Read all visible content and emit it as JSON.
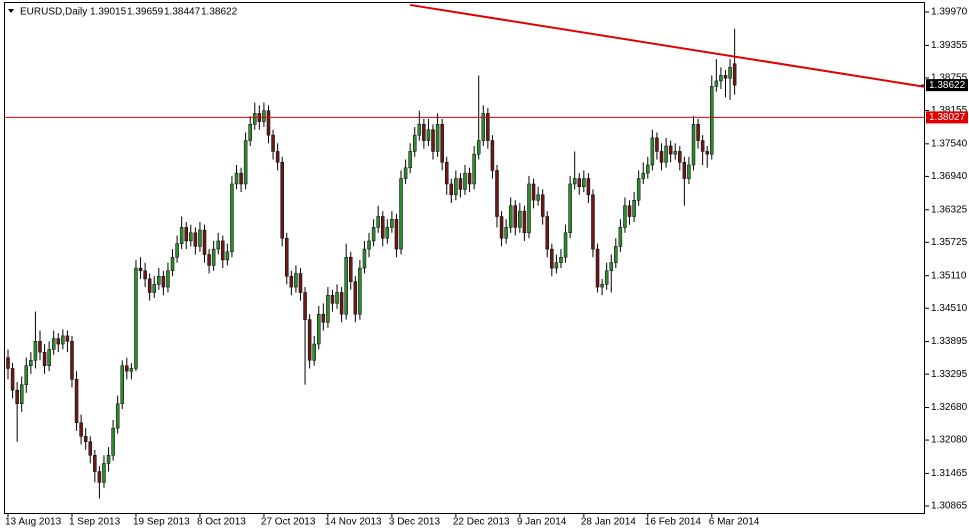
{
  "chart_data": {
    "type": "candlestick",
    "symbol": "EURUSD,Daily",
    "up_color": "#2e8b2e",
    "down_color": "#6b1a1a",
    "line_color": "#e00000",
    "ylim": [
      1.30736,
      1.40154
    ],
    "yticks": [
      {
        "value": 1.3997,
        "label": "1.39970"
      },
      1.39355,
      1.38755,
      1.38155,
      {
        "value": 1.3754,
        "label": "1.37540"
      },
      {
        "value": 1.3694,
        "label": "1.36940"
      },
      1.36325,
      1.35725,
      {
        "value": 1.3511,
        "label": "1.35110"
      },
      {
        "value": 1.3451,
        "label": "1.34510"
      },
      1.33895,
      1.33295,
      {
        "value": 1.3268,
        "label": "1.32680"
      },
      {
        "value": 1.3208,
        "label": "1.32080"
      },
      1.31465,
      1.30865
    ],
    "xticks": [
      "13 Aug 2013",
      "1 Sep 2013",
      "19 Sep 2013",
      "8 Oct 2013",
      "27 Oct 2013",
      "14 Nov 2013",
      "3 Dec 2013",
      "22 Dec 2013",
      "9 Jan 2014",
      "28 Jan 2014",
      "16 Feb 2014",
      "6 Mar 2014"
    ],
    "level": 1.38027,
    "trendline": {
      "start": 1.401,
      "end": 1.3859
    },
    "candles": [
      [
        1.336,
        1.3375,
        1.332,
        1.334
      ],
      [
        1.334,
        1.335,
        1.3285,
        1.33
      ],
      [
        1.33,
        1.3315,
        1.3205,
        1.3275
      ],
      [
        1.3275,
        1.3325,
        1.326,
        1.331
      ],
      [
        1.331,
        1.336,
        1.3295,
        1.3345
      ],
      [
        1.3345,
        1.337,
        1.333,
        1.3355
      ],
      [
        1.3355,
        1.3445,
        1.334,
        1.339
      ],
      [
        1.339,
        1.341,
        1.3355,
        1.337
      ],
      [
        1.337,
        1.3385,
        1.333,
        1.3345
      ],
      [
        1.3345,
        1.339,
        1.3335,
        1.3375
      ],
      [
        1.3375,
        1.341,
        1.3365,
        1.3395
      ],
      [
        1.3395,
        1.3405,
        1.337,
        1.3385
      ],
      [
        1.3385,
        1.3412,
        1.3375,
        1.34
      ],
      [
        1.34,
        1.341,
        1.337,
        1.339
      ],
      [
        1.339,
        1.34,
        1.3305,
        1.332
      ],
      [
        1.332,
        1.3335,
        1.3225,
        1.324
      ],
      [
        1.324,
        1.3255,
        1.32,
        1.3215
      ],
      [
        1.3215,
        1.323,
        1.319,
        1.3205
      ],
      [
        1.3205,
        1.3215,
        1.3165,
        1.318
      ],
      [
        1.318,
        1.319,
        1.313,
        1.315
      ],
      [
        1.315,
        1.316,
        1.31,
        1.313
      ],
      [
        1.313,
        1.318,
        1.312,
        1.3165
      ],
      [
        1.3165,
        1.3195,
        1.315,
        1.318
      ],
      [
        1.318,
        1.3245,
        1.317,
        1.323
      ],
      [
        1.323,
        1.329,
        1.322,
        1.3275
      ],
      [
        1.3275,
        1.3355,
        1.3265,
        1.3345
      ],
      [
        1.3345,
        1.336,
        1.332,
        1.3335
      ],
      [
        1.3335,
        1.335,
        1.332,
        1.334
      ],
      [
        1.334,
        1.354,
        1.3335,
        1.3525
      ],
      [
        1.3525,
        1.3545,
        1.3505,
        1.352
      ],
      [
        1.352,
        1.3535,
        1.349,
        1.3505
      ],
      [
        1.3505,
        1.3515,
        1.3465,
        1.348
      ],
      [
        1.348,
        1.351,
        1.347,
        1.3495
      ],
      [
        1.3495,
        1.3525,
        1.3485,
        1.351
      ],
      [
        1.351,
        1.352,
        1.3475,
        1.349
      ],
      [
        1.349,
        1.3535,
        1.348,
        1.352
      ],
      [
        1.352,
        1.356,
        1.351,
        1.3545
      ],
      [
        1.3545,
        1.3585,
        1.3535,
        1.357
      ],
      [
        1.357,
        1.362,
        1.356,
        1.36
      ],
      [
        1.36,
        1.361,
        1.356,
        1.3575
      ],
      [
        1.3575,
        1.3605,
        1.3565,
        1.359
      ],
      [
        1.359,
        1.36,
        1.355,
        1.3565
      ],
      [
        1.3565,
        1.361,
        1.3555,
        1.3595
      ],
      [
        1.3595,
        1.3605,
        1.3535,
        1.355
      ],
      [
        1.355,
        1.356,
        1.3515,
        1.353
      ],
      [
        1.353,
        1.3575,
        1.352,
        1.356
      ],
      [
        1.356,
        1.359,
        1.355,
        1.3575
      ],
      [
        1.3575,
        1.3585,
        1.3525,
        1.354
      ],
      [
        1.354,
        1.357,
        1.353,
        1.3555
      ],
      [
        1.3555,
        1.3695,
        1.3545,
        1.368
      ],
      [
        1.368,
        1.3715,
        1.367,
        1.37
      ],
      [
        1.37,
        1.371,
        1.3665,
        1.368
      ],
      [
        1.368,
        1.3775,
        1.367,
        1.376
      ],
      [
        1.376,
        1.3805,
        1.375,
        1.379
      ],
      [
        1.379,
        1.383,
        1.378,
        1.381
      ],
      [
        1.381,
        1.3825,
        1.378,
        1.3795
      ],
      [
        1.3795,
        1.383,
        1.3785,
        1.3815
      ],
      [
        1.3815,
        1.3825,
        1.3755,
        1.377
      ],
      [
        1.377,
        1.378,
        1.3725,
        1.374
      ],
      [
        1.374,
        1.3755,
        1.3705,
        1.372
      ],
      [
        1.372,
        1.373,
        1.3565,
        1.358
      ],
      [
        1.358,
        1.359,
        1.3495,
        1.351
      ],
      [
        1.351,
        1.352,
        1.3475,
        1.349
      ],
      [
        1.349,
        1.353,
        1.348,
        1.3515
      ],
      [
        1.3515,
        1.3525,
        1.3465,
        1.348
      ],
      [
        1.348,
        1.349,
        1.331,
        1.343
      ],
      [
        1.343,
        1.344,
        1.334,
        1.3355
      ],
      [
        1.3355,
        1.34,
        1.3345,
        1.3385
      ],
      [
        1.3385,
        1.3455,
        1.3375,
        1.344
      ],
      [
        1.344,
        1.346,
        1.341,
        1.3425
      ],
      [
        1.3425,
        1.349,
        1.3415,
        1.3475
      ],
      [
        1.3475,
        1.3485,
        1.3445,
        1.346
      ],
      [
        1.346,
        1.3495,
        1.345,
        1.348
      ],
      [
        1.348,
        1.349,
        1.3425,
        1.344
      ],
      [
        1.344,
        1.357,
        1.343,
        1.3545
      ],
      [
        1.3545,
        1.3555,
        1.3485,
        1.35
      ],
      [
        1.35,
        1.351,
        1.3425,
        1.344
      ],
      [
        1.344,
        1.354,
        1.343,
        1.3525
      ],
      [
        1.3525,
        1.3575,
        1.3515,
        1.356
      ],
      [
        1.356,
        1.359,
        1.3545,
        1.3575
      ],
      [
        1.3575,
        1.3615,
        1.3565,
        1.36
      ],
      [
        1.36,
        1.364,
        1.359,
        1.362
      ],
      [
        1.362,
        1.363,
        1.3565,
        1.358
      ],
      [
        1.358,
        1.3615,
        1.357,
        1.36
      ],
      [
        1.36,
        1.363,
        1.359,
        1.3615
      ],
      [
        1.3615,
        1.3625,
        1.3545,
        1.356
      ],
      [
        1.356,
        1.3705,
        1.355,
        1.369
      ],
      [
        1.369,
        1.3725,
        1.368,
        1.371
      ],
      [
        1.371,
        1.3755,
        1.37,
        1.374
      ],
      [
        1.374,
        1.3785,
        1.373,
        1.377
      ],
      [
        1.377,
        1.3815,
        1.376,
        1.379
      ],
      [
        1.379,
        1.38,
        1.3745,
        1.376
      ],
      [
        1.376,
        1.38,
        1.375,
        1.378
      ],
      [
        1.378,
        1.379,
        1.3725,
        1.374
      ],
      [
        1.374,
        1.381,
        1.373,
        1.379
      ],
      [
        1.379,
        1.38,
        1.3705,
        1.372
      ],
      [
        1.372,
        1.373,
        1.366,
        1.368
      ],
      [
        1.368,
        1.369,
        1.3645,
        1.366
      ],
      [
        1.366,
        1.3705,
        1.365,
        1.369
      ],
      [
        1.369,
        1.37,
        1.3655,
        1.367
      ],
      [
        1.367,
        1.3715,
        1.366,
        1.37
      ],
      [
        1.37,
        1.371,
        1.3665,
        1.368
      ],
      [
        1.368,
        1.375,
        1.367,
        1.3735
      ],
      [
        1.3735,
        1.388,
        1.3725,
        1.376
      ],
      [
        1.376,
        1.3825,
        1.375,
        1.381
      ],
      [
        1.381,
        1.382,
        1.3745,
        1.376
      ],
      [
        1.376,
        1.377,
        1.369,
        1.3705
      ],
      [
        1.3705,
        1.3715,
        1.36,
        1.362
      ],
      [
        1.362,
        1.363,
        1.3565,
        1.358
      ],
      [
        1.358,
        1.3615,
        1.357,
        1.36
      ],
      [
        1.36,
        1.3655,
        1.359,
        1.364
      ],
      [
        1.364,
        1.365,
        1.3585,
        1.36
      ],
      [
        1.36,
        1.3645,
        1.359,
        1.363
      ],
      [
        1.363,
        1.364,
        1.3575,
        1.359
      ],
      [
        1.359,
        1.3695,
        1.358,
        1.368
      ],
      [
        1.368,
        1.369,
        1.3635,
        1.365
      ],
      [
        1.365,
        1.3675,
        1.364,
        1.366
      ],
      [
        1.366,
        1.367,
        1.3605,
        1.362
      ],
      [
        1.362,
        1.363,
        1.3545,
        1.356
      ],
      [
        1.356,
        1.357,
        1.351,
        1.3525
      ],
      [
        1.3525,
        1.355,
        1.3515,
        1.3535
      ],
      [
        1.3535,
        1.356,
        1.3525,
        1.3545
      ],
      [
        1.3545,
        1.3605,
        1.3535,
        1.359
      ],
      [
        1.359,
        1.3695,
        1.358,
        1.368
      ],
      [
        1.368,
        1.374,
        1.367,
        1.369
      ],
      [
        1.369,
        1.37,
        1.366,
        1.3675
      ],
      [
        1.3675,
        1.3705,
        1.3665,
        1.369
      ],
      [
        1.369,
        1.37,
        1.3645,
        1.366
      ],
      [
        1.366,
        1.367,
        1.3545,
        1.356
      ],
      [
        1.356,
        1.357,
        1.348,
        1.349
      ],
      [
        1.349,
        1.3505,
        1.3475,
        1.3495
      ],
      [
        1.3495,
        1.3535,
        1.3485,
        1.352
      ],
      [
        1.352,
        1.355,
        1.348,
        1.3535
      ],
      [
        1.3535,
        1.358,
        1.3525,
        1.3565
      ],
      [
        1.3565,
        1.3615,
        1.3555,
        1.36
      ],
      [
        1.36,
        1.3655,
        1.359,
        1.364
      ],
      [
        1.364,
        1.365,
        1.3605,
        1.362
      ],
      [
        1.362,
        1.3665,
        1.361,
        1.365
      ],
      [
        1.365,
        1.3705,
        1.364,
        1.369
      ],
      [
        1.369,
        1.372,
        1.368,
        1.37
      ],
      [
        1.37,
        1.373,
        1.369,
        1.3715
      ],
      [
        1.3715,
        1.378,
        1.3705,
        1.3765
      ],
      [
        1.3765,
        1.3775,
        1.3725,
        1.374
      ],
      [
        1.374,
        1.3755,
        1.3705,
        1.372
      ],
      [
        1.372,
        1.3765,
        1.371,
        1.375
      ],
      [
        1.375,
        1.376,
        1.372,
        1.3735
      ],
      [
        1.3735,
        1.3755,
        1.3725,
        1.374
      ],
      [
        1.374,
        1.375,
        1.3705,
        1.372
      ],
      [
        1.372,
        1.373,
        1.364,
        1.369
      ],
      [
        1.369,
        1.373,
        1.368,
        1.3715
      ],
      [
        1.3715,
        1.3805,
        1.3705,
        1.379
      ],
      [
        1.379,
        1.38,
        1.3745,
        1.376
      ],
      [
        1.376,
        1.377,
        1.3715,
        1.374
      ],
      [
        1.374,
        1.375,
        1.371,
        1.3735
      ],
      [
        1.3735,
        1.388,
        1.3725,
        1.386
      ],
      [
        1.386,
        1.391,
        1.385,
        1.387
      ],
      [
        1.387,
        1.3895,
        1.3855,
        1.388
      ],
      [
        1.388,
        1.389,
        1.384,
        1.3875
      ],
      [
        1.3875,
        1.391,
        1.3835,
        1.3895
      ],
      [
        1.39015,
        1.39659,
        1.38447,
        1.38622
      ]
    ]
  }
}
